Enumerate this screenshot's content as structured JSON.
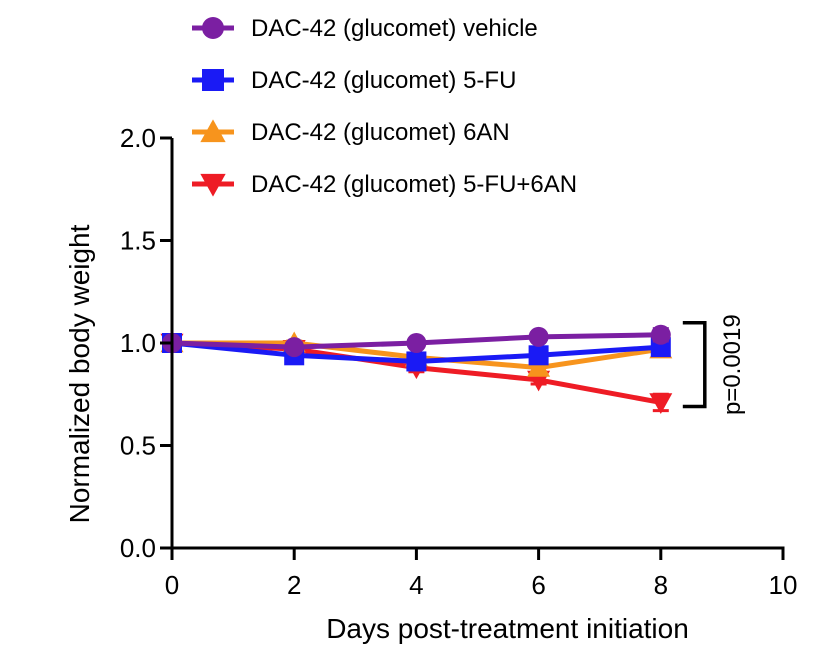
{
  "chart_data": {
    "type": "line",
    "title": "",
    "xlabel": "Days post-treatment initiation",
    "ylabel": "Normalized body weight",
    "xlim": [
      0,
      10
    ],
    "ylim": [
      0,
      2.0
    ],
    "x_ticks": [
      0,
      2,
      4,
      6,
      8,
      10
    ],
    "x_tick_labels": [
      "0",
      "2",
      "4",
      "6",
      "8",
      "10"
    ],
    "y_ticks": [
      0,
      0.5,
      1.0,
      1.5,
      2.0
    ],
    "y_tick_labels": [
      "0.0",
      "0.5",
      "1.0",
      "1.5",
      "2.0"
    ],
    "grid": false,
    "legend_position": "top-center",
    "series": [
      {
        "name": "DAC-42 (glucomet) vehicle",
        "color": "#7B1FA2",
        "marker": "circle",
        "x": [
          0,
          2,
          4,
          6,
          8
        ],
        "values": [
          1.0,
          0.98,
          1.0,
          1.03,
          1.04
        ],
        "error": [
          0,
          0.01,
          0.01,
          0.02,
          0.03
        ]
      },
      {
        "name": "DAC-42 (glucomet) 5-FU",
        "color": "#1A1AF5",
        "marker": "square",
        "x": [
          0,
          2,
          4,
          6,
          8
        ],
        "values": [
          1.0,
          0.94,
          0.91,
          0.94,
          0.98
        ],
        "error": [
          0,
          0.01,
          0.02,
          0.02,
          0.02
        ]
      },
      {
        "name": "DAC-42 (glucomet) 6AN",
        "color": "#F7941D",
        "marker": "triangle-up",
        "x": [
          0,
          2,
          4,
          6,
          8
        ],
        "values": [
          1.0,
          1.0,
          0.93,
          0.88,
          0.97
        ],
        "error": [
          0,
          0.01,
          0.02,
          0.02,
          0.03
        ]
      },
      {
        "name": "DAC-42 (glucomet) 5-FU+6AN",
        "color": "#EE1C25",
        "marker": "triangle-down",
        "x": [
          0,
          2,
          4,
          6,
          8
        ],
        "values": [
          1.0,
          0.97,
          0.88,
          0.82,
          0.71
        ],
        "error": [
          0,
          0.01,
          0.02,
          0.02,
          0.04
        ]
      }
    ],
    "annotations": [
      {
        "text": "p=0.0019",
        "type": "bracket",
        "x": 8,
        "y_range": [
          0.7,
          1.04
        ]
      }
    ]
  }
}
